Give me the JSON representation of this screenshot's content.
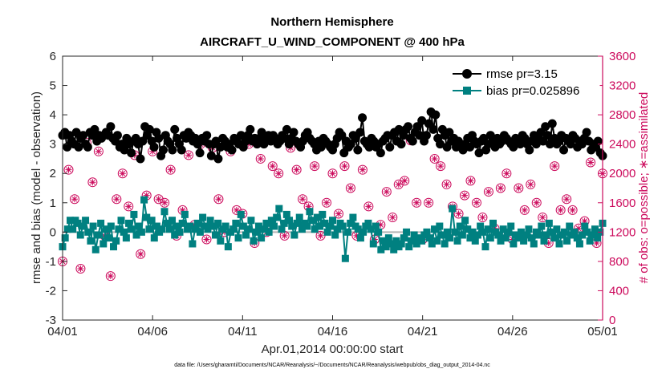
{
  "chart_data": {
    "type": "line",
    "title": "Northern Hemisphere",
    "subtitle": "AIRCRAFT_U_WIND_COMPONENT @ 400 hPa",
    "xlabel": "Apr.01,2014 00:00:00 start",
    "ylabel": "rmse and bias (model - observation)",
    "y2label": "# of obs: o=possible; ∗=assimilated",
    "footnote": "data file: /Users/gharamti/Documents/NCAR/Reanalysis/~/Documents/NCAR/Reanalysis/webpub/obs_diag_output_2014-04.nc",
    "xlim": [
      0,
      30
    ],
    "ylim": [
      -3,
      6
    ],
    "y2lim": [
      0,
      3600
    ],
    "x_ticks": [
      0,
      5,
      10,
      15,
      20,
      25,
      30
    ],
    "x_tick_labels": [
      "04/01",
      "04/06",
      "04/11",
      "04/16",
      "04/21",
      "04/26",
      "05/01"
    ],
    "y_ticks": [
      "-3",
      "-2",
      "-1",
      "0",
      "1",
      "2",
      "3",
      "4",
      "5",
      "6"
    ],
    "y2_ticks": [
      "0",
      "400",
      "800",
      "1200",
      "1600",
      "2000",
      "2400",
      "2800",
      "3200",
      "3600"
    ],
    "colors": {
      "rmse": "#000000",
      "bias": "#008080",
      "obs": "#cc0a5c",
      "zero_line": "#b3b3b3"
    },
    "legend": [
      {
        "key": "rmse",
        "label": "rmse pr=3.15"
      },
      {
        "key": "bias",
        "label": "bias pr=0.025896"
      }
    ],
    "legend_placement": "top-right",
    "series": [
      {
        "name": "rmse",
        "axis": "left",
        "marker": "circle",
        "values": [
          3.3,
          3.4,
          2.9,
          3.3,
          3.1,
          3.0,
          3.4,
          2.9,
          3.2,
          3.3,
          3.0,
          2.9,
          3.4,
          3.3,
          3.5,
          3.1,
          3.3,
          3.2,
          3.3,
          3.4,
          3.3,
          3.6,
          3.2,
          3.1,
          3.3,
          2.9,
          3.0,
          2.8,
          3.2,
          3.0,
          2.7,
          3.1,
          3.2,
          3.0,
          2.5,
          3.1,
          3.6,
          3.3,
          3.5,
          3.1,
          2.9,
          3.4,
          3.2,
          2.6,
          2.8,
          3.3,
          3.1,
          3.0,
          2.8,
          3.5,
          3.2,
          3.0,
          2.8,
          3.3,
          3.2,
          3.4,
          3.3,
          3.1,
          3.2,
          3.0,
          2.7,
          3.2,
          3.1,
          3.3,
          3.0,
          2.6,
          3.0,
          3.1,
          2.5,
          2.9,
          3.2,
          3.1,
          2.9,
          3.0,
          2.8,
          3.2,
          3.1,
          3.0,
          3.3,
          2.9,
          3.1,
          3.3,
          3.5,
          3.1,
          3.2,
          3.0,
          3.2,
          3.4,
          3.0,
          3.2,
          3.3,
          3.1,
          3.3,
          3.2,
          3.0,
          3.1,
          3.3,
          3.2,
          3.5,
          3.0,
          3.2,
          3.4,
          3.1,
          3.0,
          2.9,
          3.1,
          3.3,
          3.4,
          3.2,
          3.1,
          3.0,
          2.8,
          3.1,
          2.9,
          3.2,
          3.1,
          3.0,
          2.9,
          2.8,
          3.0,
          3.2,
          3.4,
          3.3,
          2.7,
          3.1,
          2.9,
          3.0,
          3.3,
          3.2,
          2.8,
          3.4,
          3.9,
          3.1,
          3.0,
          2.9,
          3.2,
          3.1,
          2.9,
          3.0,
          2.7,
          3.1,
          3.2,
          3.3,
          2.9,
          3.3,
          3.4,
          3.1,
          3.5,
          3.0,
          3.3,
          3.5,
          3.6,
          3.2,
          3.1,
          3.4,
          3.6,
          3.3,
          3.8,
          3.1,
          3.3,
          3.7,
          4.1,
          3.5,
          4.0,
          3.2,
          3.0,
          3.5,
          3.3,
          2.9,
          3.4,
          3.1,
          3.2,
          2.9,
          3.1,
          3.0,
          2.8,
          3.0,
          3.2,
          2.9,
          3.3,
          3.1,
          3.0,
          2.7,
          3.1,
          3.2,
          2.8,
          3.0,
          3.3,
          3.1,
          2.9,
          3.2,
          3.0,
          3.1,
          3.3,
          3.2,
          3.1,
          3.0,
          2.9,
          3.2,
          3.1,
          3.0,
          3.3,
          3.2,
          3.0,
          2.8,
          3.1,
          3.3,
          3.0,
          3.2,
          3.4,
          3.1,
          3.6,
          3.3,
          3.0,
          3.7,
          3.2,
          3.0,
          3.1,
          3.3,
          2.8,
          3.2,
          3.1,
          3.0,
          3.3,
          3.2,
          2.9,
          3.1,
          3.0,
          3.2,
          3.4,
          3.1,
          2.8,
          3.0,
          2.9,
          3.1,
          2.7,
          2.6
        ]
      },
      {
        "name": "bias",
        "axis": "left",
        "marker": "square",
        "values": [
          -0.5,
          -0.2,
          0.1,
          0.4,
          0.1,
          0.4,
          0.3,
          -0.1,
          0.2,
          0.4,
          0.0,
          -0.3,
          0.2,
          -0.6,
          -0.1,
          0.3,
          -0.4,
          0.1,
          -0.2,
          0.2,
          -0.5,
          -0.3,
          0.1,
          0.4,
          0.0,
          -0.2,
          0.3,
          0.1,
          0.6,
          -0.1,
          0.2,
          0.0,
          1.1,
          0.5,
          0.1,
          0.4,
          -0.2,
          0.2,
          0.0,
          0.1,
          0.7,
          0.3,
          0.1,
          0.4,
          -0.1,
          0.2,
          0.0,
          0.3,
          0.6,
          0.1,
          0.2,
          -0.4,
          0.1,
          0.3,
          0.0,
          0.5,
          0.2,
          0.1,
          0.4,
          0.2,
          -0.1,
          0.3,
          -0.3,
          0.1,
          0.2,
          -0.5,
          0.0,
          0.1,
          0.3,
          -0.2,
          0.6,
          0.2,
          -0.1,
          0.1,
          0.4,
          -0.3,
          0.0,
          0.2,
          -0.2,
          0.1,
          0.3,
          0.0,
          0.4,
          0.2,
          0.5,
          0.8,
          0.1,
          0.3,
          0.6,
          0.4,
          0.2,
          -0.1,
          0.3,
          0.5,
          0.1,
          0.3,
          0.2,
          0.7,
          0.4,
          0.1,
          0.5,
          0.2,
          0.6,
          0.3,
          0.0,
          0.2,
          0.4,
          -0.1,
          0.1,
          0.3,
          0.2,
          -0.9,
          0.0,
          0.3,
          0.5,
          0.2,
          0.1,
          -0.2,
          0.0,
          0.2,
          0.3,
          0.1,
          -0.4,
          0.2,
          0.0,
          -0.6,
          -0.3,
          -0.5,
          -0.2,
          -0.4,
          -0.6,
          -0.3,
          -0.5,
          -0.4,
          -0.2,
          0.0,
          -0.5,
          -0.3,
          -0.1,
          -0.4,
          -0.2,
          -0.3,
          -0.1,
          0.0,
          -0.2,
          -0.4,
          0.1,
          -0.3,
          0.2,
          -0.1,
          -0.4,
          0.0,
          -0.2,
          0.8,
          0.0,
          -0.3,
          0.2,
          -0.1,
          0.4,
          0.1,
          -0.2,
          0.0,
          -0.3,
          -0.1,
          0.2,
          0.0,
          -0.5,
          0.1,
          -0.2,
          0.3,
          0.0,
          -0.1,
          -0.3,
          0.1,
          -0.2,
          0.0,
          0.2,
          -0.4,
          -0.1,
          -0.2,
          0.0,
          -0.3,
          -0.1,
          0.1,
          -0.2,
          -0.4,
          0.0,
          -0.1,
          0.2,
          -0.3,
          -0.1,
          0.3,
          0.0,
          -0.2,
          0.1,
          -0.4,
          -0.1,
          0.0,
          -0.3,
          0.2,
          -0.1,
          0.0,
          -0.2,
          -0.4,
          -0.1,
          0.2,
          0.0,
          -0.3,
          -0.1,
          0.1,
          -0.2,
          0.0,
          0.3
        ]
      },
      {
        "name": "possible",
        "axis": "right",
        "marker": "circle-open",
        "values": [
          800,
          2050,
          1650,
          700,
          2420,
          1880,
          2300,
          1150,
          600,
          1650,
          2000,
          1550,
          2250,
          900,
          1700,
          2300,
          1650,
          1600,
          2050,
          1150,
          1500,
          2250,
          1300,
          2400,
          1100,
          2350,
          1650,
          1200,
          2300,
          1500,
          1450,
          2400,
          1050,
          2200,
          1200,
          2100,
          2000,
          1150,
          2350,
          2050,
          1650,
          1550,
          2100,
          1150,
          1600,
          2000,
          1450,
          2100,
          1800,
          1150,
          2050,
          1550,
          1100,
          1300,
          1750,
          1400,
          1850,
          1900,
          2450,
          1600,
          1100,
          1600,
          2200,
          2100,
          1850,
          1550,
          1450,
          1700,
          1900,
          1600,
          1400,
          1750,
          1250,
          1800,
          2000,
          1100,
          1800,
          1500,
          1850,
          1600,
          1400,
          1050,
          2100,
          1500,
          1650,
          1500,
          1250,
          1350,
          2150,
          1050,
          2000
        ]
      },
      {
        "name": "assimilated",
        "axis": "right",
        "marker": "star",
        "values": [
          800,
          2050,
          1650,
          700,
          2420,
          1880,
          2300,
          1150,
          600,
          1650,
          2000,
          1550,
          2250,
          900,
          1700,
          2300,
          1650,
          1600,
          2050,
          1150,
          1500,
          2250,
          1300,
          2400,
          1100,
          2350,
          1650,
          1200,
          2300,
          1500,
          1450,
          2400,
          1050,
          2200,
          1200,
          2100,
          2000,
          1150,
          2350,
          2050,
          1650,
          1550,
          2100,
          1150,
          1600,
          2000,
          1450,
          2100,
          1800,
          1150,
          2050,
          1550,
          1100,
          1300,
          1750,
          1400,
          1850,
          1900,
          2450,
          1600,
          1100,
          1600,
          2200,
          2100,
          1850,
          1550,
          1450,
          1700,
          1900,
          1600,
          1400,
          1750,
          1250,
          1800,
          2000,
          1100,
          1800,
          1500,
          1850,
          1600,
          1400,
          1050,
          2100,
          1500,
          1650,
          1500,
          1250,
          1350,
          2150,
          1050,
          2000
        ]
      }
    ]
  }
}
